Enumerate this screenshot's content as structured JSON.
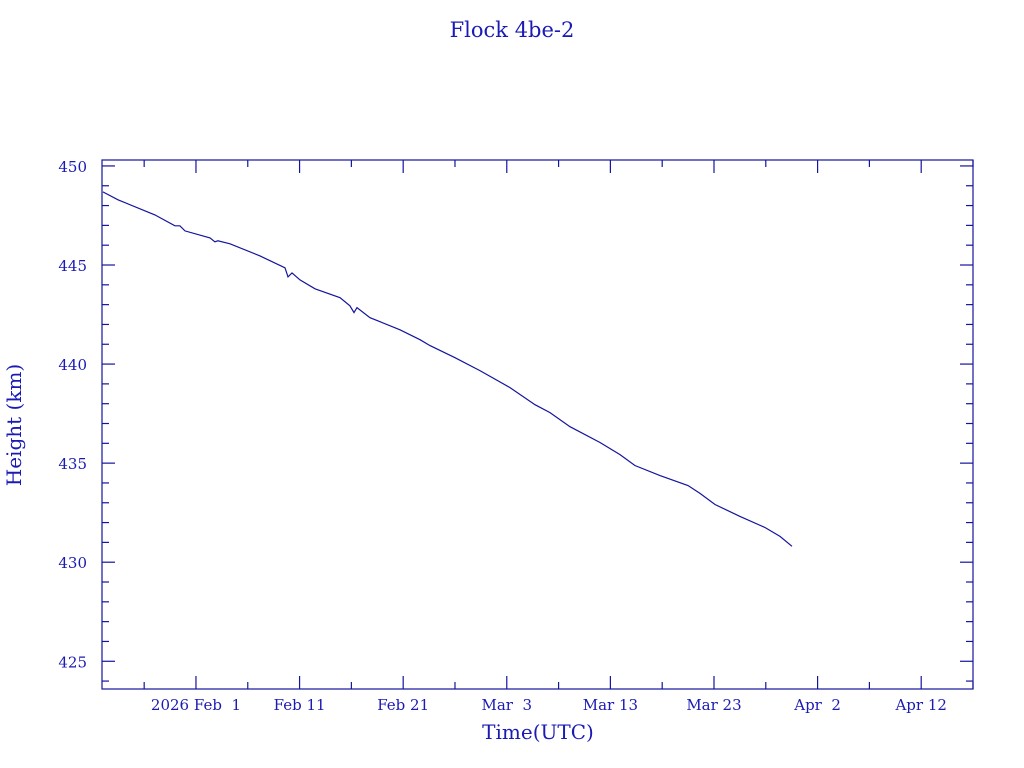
{
  "chart_data": {
    "type": "line",
    "title": "Flock 4be-2",
    "xlabel": "Time(UTC)",
    "ylabel": "Height (km)",
    "x_units": "days since 2026 Feb 1",
    "xlim": [
      -9.07,
      75.0
    ],
    "ylim": [
      423.6,
      450.3
    ],
    "x_major_step_days": 10,
    "x_minor_step_days": 5,
    "y_major_step": 5,
    "y_minor_step": 1,
    "x_ticks": [
      {
        "value": 0,
        "label": "2026 Feb  1"
      },
      {
        "value": 10,
        "label": "Feb 11"
      },
      {
        "value": 20,
        "label": "Feb 21"
      },
      {
        "value": 30,
        "label": "Mar  3"
      },
      {
        "value": 40,
        "label": "Mar 13"
      },
      {
        "value": 50,
        "label": "Mar 23"
      },
      {
        "value": 60,
        "label": "Apr  2"
      },
      {
        "value": 70,
        "label": "Apr 12"
      }
    ],
    "y_ticks": [
      {
        "value": 425,
        "label": "425"
      },
      {
        "value": 430,
        "label": "430"
      },
      {
        "value": 435,
        "label": "435"
      },
      {
        "value": 440,
        "label": "440"
      },
      {
        "value": 445,
        "label": "445"
      },
      {
        "value": 450,
        "label": "450"
      }
    ],
    "grid": false,
    "color": "#14149e",
    "series": [
      {
        "name": "Height",
        "x": [
          -8.98,
          -7.53,
          -3.96,
          -2.03,
          -1.55,
          -1.06,
          1.35,
          1.83,
          2.12,
          3.28,
          6.18,
          8.59,
          8.88,
          9.27,
          10.04,
          11.49,
          13.9,
          14.86,
          15.25,
          15.54,
          16.8,
          17.76,
          19.69,
          21.62,
          22.59,
          25.0,
          27.41,
          30.31,
          32.72,
          34.17,
          36.1,
          39.0,
          40.93,
          42.37,
          44.79,
          47.49,
          48.65,
          50.1,
          52.51,
          54.92,
          56.37,
          57.53
        ],
        "y": [
          448.69,
          448.29,
          447.53,
          446.98,
          446.98,
          446.72,
          446.37,
          446.17,
          446.22,
          446.07,
          445.46,
          444.86,
          444.4,
          444.6,
          444.25,
          443.8,
          443.35,
          442.94,
          442.6,
          442.85,
          442.34,
          442.14,
          441.73,
          441.23,
          440.93,
          440.32,
          439.67,
          438.81,
          437.95,
          437.55,
          436.84,
          436.04,
          435.43,
          434.88,
          434.37,
          433.87,
          433.47,
          432.91,
          432.31,
          431.75,
          431.3,
          430.8
        ]
      }
    ]
  }
}
